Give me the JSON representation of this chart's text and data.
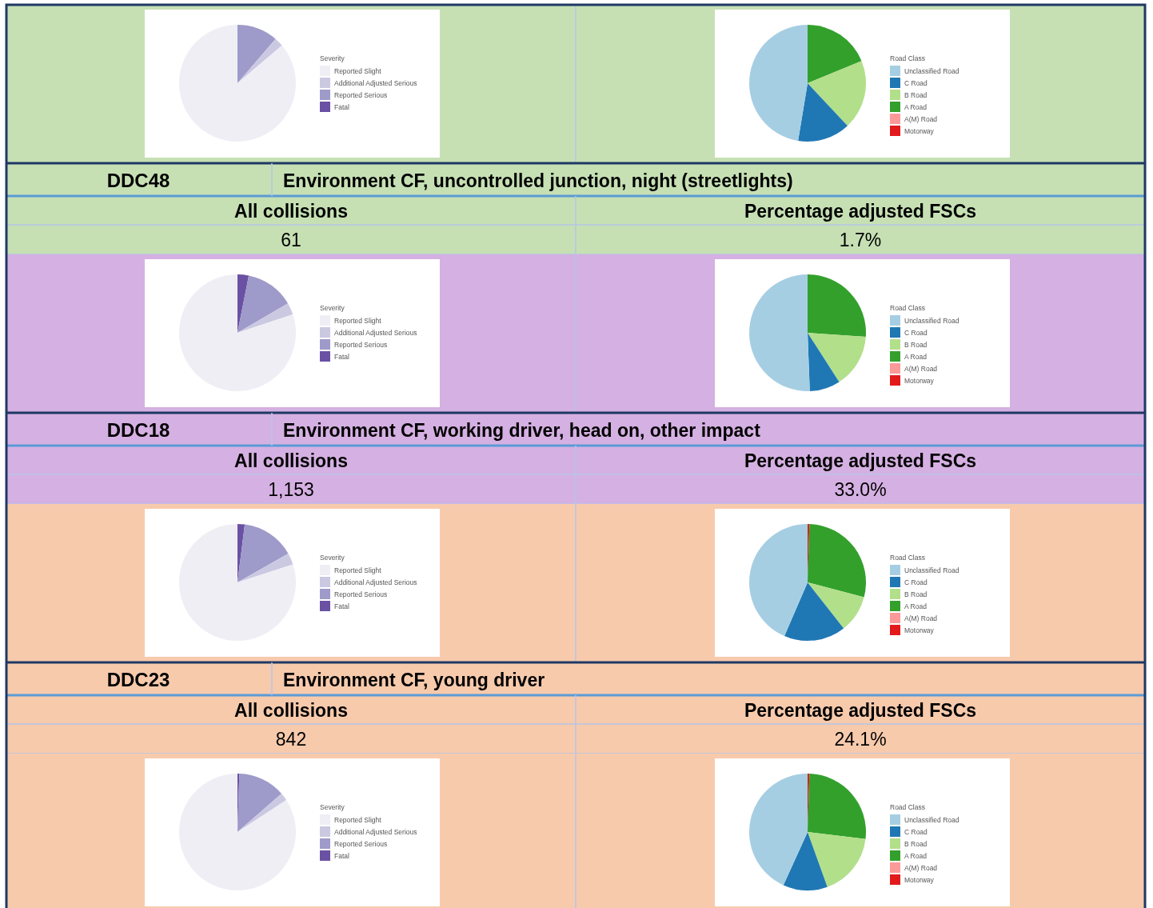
{
  "chart_data": [
    {
      "type": "pie",
      "legend": "right",
      "legend_title": "Severity",
      "categories": [
        "Reported Slight",
        "Additional Adjusted Serious",
        "Reported Serious",
        "Fatal"
      ],
      "colors": [
        "#efeef5",
        "#cbc8e2",
        "#9e9ac9",
        "#6a51a3"
      ],
      "values": [
        86.2,
        2.5,
        11.3,
        0
      ]
    },
    {
      "type": "pie",
      "legend": "right",
      "legend_title": "Road Class",
      "categories": [
        "Unclassified Road",
        "C Road",
        "B Road",
        "A Road",
        "A(M) Road",
        "Motorway"
      ],
      "colors": [
        "#a6cee3",
        "#1f78b4",
        "#b2df8a",
        "#33a02c",
        "#fb9a99",
        "#e31a1c"
      ],
      "values": [
        47.4,
        14.6,
        19.2,
        18.8,
        0,
        0
      ]
    },
    {
      "type": "other",
      "title": "DDC48",
      "subtitle": "Environment CF, uncontrolled junction, night (streetlights)",
      "annotations": [
        "All collisions",
        "Percentage adjusted FSCs",
        "61",
        "1.7%"
      ]
    },
    {
      "type": "pie",
      "legend": "right",
      "legend_title": "Severity",
      "categories": [
        "Reported Slight",
        "Additional Adjusted Serious",
        "Reported Serious",
        "Fatal"
      ],
      "colors": [
        "#efeef5",
        "#cbc8e2",
        "#9e9ac9",
        "#6a51a3"
      ],
      "values": [
        80.1,
        3.3,
        13.5,
        3.1
      ]
    },
    {
      "type": "pie",
      "legend": "right",
      "legend_title": "Road Class",
      "categories": [
        "Unclassified Road",
        "C Road",
        "B Road",
        "A Road",
        "A(M) Road",
        "Motorway"
      ],
      "colors": [
        "#a6cee3",
        "#1f78b4",
        "#b2df8a",
        "#33a02c",
        "#fb9a99",
        "#e31a1c"
      ],
      "values": [
        50.6,
        8.5,
        14.8,
        26.1,
        0,
        0
      ]
    },
    {
      "type": "other",
      "title": "DDC18",
      "subtitle": "Environment CF, working driver, head on, other impact",
      "annotations": [
        "All collisions",
        "Percentage adjusted FSCs",
        "1,153",
        "33.0%"
      ]
    },
    {
      "type": "pie",
      "legend": "right",
      "legend_title": "Severity",
      "categories": [
        "Reported Slight",
        "Additional Adjusted Serious",
        "Reported Serious",
        "Fatal"
      ],
      "colors": [
        "#efeef5",
        "#cbc8e2",
        "#9e9ac9",
        "#6a51a3"
      ],
      "values": [
        80,
        3.2,
        14.8,
        2
      ]
    },
    {
      "type": "pie",
      "legend": "right",
      "legend_title": "Road Class",
      "categories": [
        "Unclassified Road",
        "C Road",
        "B Road",
        "A Road",
        "A(M) Road",
        "Motorway"
      ],
      "colors": [
        "#a6cee3",
        "#1f78b4",
        "#b2df8a",
        "#33a02c",
        "#fb9a99",
        "#e31a1c"
      ],
      "values": [
        43.5,
        17.1,
        10.3,
        28.6,
        0,
        0.5
      ]
    },
    {
      "type": "other",
      "title": "DDC23",
      "subtitle": "Environment CF, young driver",
      "annotations": [
        "All collisions",
        "Percentage adjusted FSCs",
        "842",
        "24.1%"
      ]
    },
    {
      "type": "pie",
      "legend": "right",
      "legend_title": "Severity",
      "categories": [
        "Reported Slight",
        "Additional Adjusted Serious",
        "Reported Serious",
        "Fatal"
      ],
      "colors": [
        "#efeef5",
        "#cbc8e2",
        "#9e9ac9",
        "#6a51a3"
      ],
      "values": [
        84.2,
        2.2,
        13.1,
        0.5
      ]
    },
    {
      "type": "pie",
      "legend": "right",
      "legend_title": "Road Class",
      "categories": [
        "Unclassified Road",
        "C Road",
        "B Road",
        "A Road",
        "A(M) Road",
        "Motorway"
      ],
      "colors": [
        "#a6cee3",
        "#1f78b4",
        "#b2df8a",
        "#33a02c",
        "#fb9a99",
        "#e31a1c"
      ],
      "values": [
        43.2,
        12.3,
        17.6,
        26.4,
        0,
        0.5
      ]
    }
  ]
}
